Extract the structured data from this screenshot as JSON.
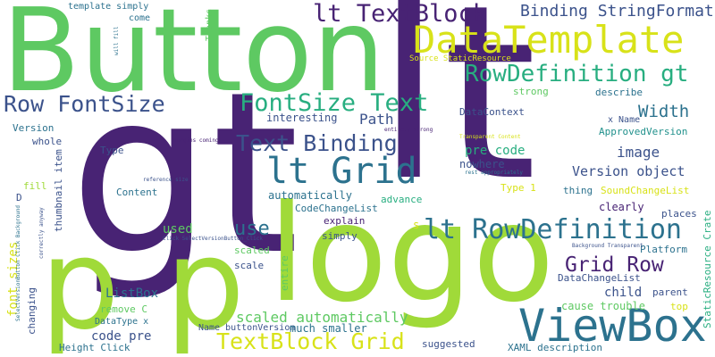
{
  "palette": {
    "purple": "#482374",
    "indigo": "#3b528b",
    "blue": "#2c728e",
    "teal": "#21918c",
    "green": "#28ae80",
    "lightgreen": "#5ec962",
    "lime": "#a0da39",
    "yellow": "#d8e219"
  },
  "words": [
    "Button",
    "gt",
    "lt",
    "logo",
    "p",
    "p",
    "DataTemplate",
    "lt TextBlock",
    "Binding StringFormat",
    "RowDefinition gt",
    "Row FontSize",
    "FontSize Text",
    "Width",
    "Text Binding",
    "lt Grid",
    "lt RowDefinition",
    "Grid Row",
    "ViewBox",
    "TextBlock Grid",
    "scaled automatically",
    "use",
    "image",
    "Version object",
    "pre code",
    "Path",
    "interesting",
    "DataContext",
    "ApprovedVersion",
    "strong",
    "describe",
    "x Name",
    "template simply",
    "come",
    "Thanks",
    "Version",
    "whole",
    "Type",
    "thumbnail item",
    "fill",
    "D",
    "Content",
    "automatically",
    "CodeChangeList",
    "advance",
    "explain",
    "simply",
    "used",
    "scaled",
    "scale",
    "entire",
    "ListBox",
    "remove C",
    "DataType x",
    "code pre",
    "Height Click",
    "font sizes",
    "changing",
    "Name buttonVersion",
    "much smaller",
    "suggested",
    "XAML description",
    "cause trouble",
    "DataChangeList",
    "child",
    "parent",
    "Platform",
    "top",
    "places",
    "clearly",
    "SoundChangeList",
    "Type 1",
    "thing",
    "nowhere",
    "StaticResource Crate",
    "Source StaticResource",
    "will fill",
    "margins coming",
    "entirely strong",
    "Transparent Content",
    "rest appropriately",
    "reference size",
    "Click SelectVersionButton_Click",
    "Background Transparent",
    "SelectVersionButton Click Background",
    "correctly anyway",
    "s"
  ]
}
